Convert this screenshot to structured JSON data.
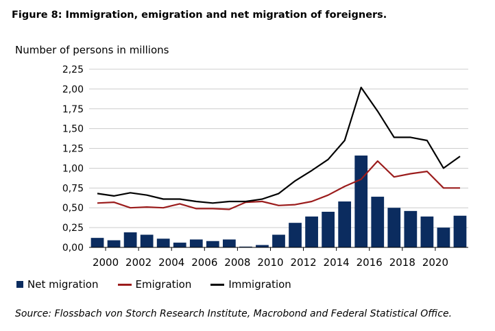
{
  "title": "Figure 8: Immigration, emigration and net migration of foreigners.",
  "source": "Source: Flossbach von Storch Research Institute, Macrobond and Federal Statistical Office.",
  "colors": {
    "net": "#0b2c5f",
    "emigration": "#9b1c1c",
    "immigration": "#000000",
    "grid": "#cccccc"
  },
  "chart_data": {
    "type": "bar",
    "ylabel": "Number of persons in millions",
    "xlabel": "",
    "ylim": [
      0,
      2.25
    ],
    "yticks": [
      "0,00",
      "0,25",
      "0,50",
      "0,75",
      "1,00",
      "1,25",
      "1,50",
      "1,75",
      "2,00",
      "2,25"
    ],
    "xticks": [
      "2000",
      "2002",
      "2004",
      "2006",
      "2008",
      "2010",
      "2012",
      "2014",
      "2016",
      "2018",
      "2020"
    ],
    "years": [
      1999,
      2000,
      2001,
      2002,
      2003,
      2004,
      2005,
      2006,
      2007,
      2008,
      2009,
      2010,
      2011,
      2012,
      2013,
      2014,
      2015,
      2016,
      2017,
      2018,
      2019,
      2020,
      2021
    ],
    "grid": true,
    "legend_position": "bottom-left",
    "series": [
      {
        "name": "Net migration",
        "kind": "bar",
        "values": [
          0.12,
          0.09,
          0.19,
          0.16,
          0.11,
          0.06,
          0.1,
          0.08,
          0.1,
          0.01,
          0.03,
          0.16,
          0.31,
          0.39,
          0.45,
          0.58,
          1.16,
          0.64,
          0.5,
          0.46,
          0.39,
          0.25,
          0.4
        ]
      },
      {
        "name": "Emigration",
        "kind": "line",
        "values": [
          0.56,
          0.57,
          0.5,
          0.51,
          0.5,
          0.55,
          0.49,
          0.49,
          0.48,
          0.57,
          0.58,
          0.53,
          0.54,
          0.58,
          0.66,
          0.77,
          0.86,
          1.09,
          0.89,
          0.93,
          0.96,
          0.75,
          0.75
        ]
      },
      {
        "name": "Immigration",
        "kind": "line",
        "values": [
          0.68,
          0.65,
          0.69,
          0.66,
          0.61,
          0.61,
          0.58,
          0.56,
          0.58,
          0.58,
          0.61,
          0.68,
          0.84,
          0.97,
          1.11,
          1.35,
          2.02,
          1.72,
          1.39,
          1.39,
          1.35,
          1.0,
          1.15
        ]
      }
    ]
  }
}
